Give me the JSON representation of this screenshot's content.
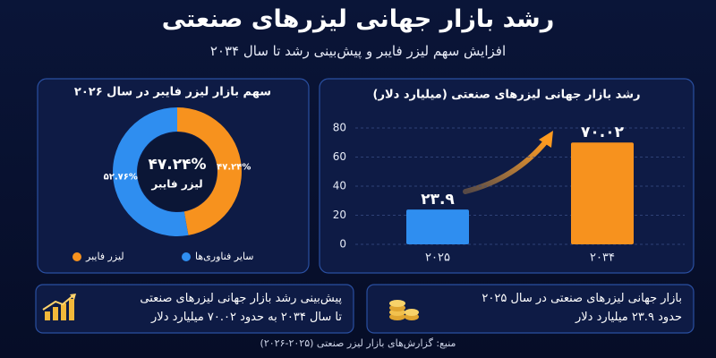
{
  "header": {
    "title": "رشد بازار جهانی لیزرهای صنعتی",
    "subtitle": "افزایش سهم لیزر فایبر و پیش‌بینی رشد تا سال ۲۰۳۴"
  },
  "chart_data": [
    {
      "type": "bar",
      "title": "رشد بازار جهانی لیزرهای صنعتی (میلیارد دلار)",
      "categories": [
        "۲۰۲۵",
        "۲۰۳۴"
      ],
      "values": [
        23.9,
        70.02
      ],
      "value_labels": [
        "۲۳.۹",
        "۷۰.۰۲"
      ],
      "colors": [
        "#2f8ef0",
        "#f7921e"
      ],
      "ylim": [
        0,
        80
      ],
      "yticks": [
        0,
        20,
        40,
        60,
        80
      ],
      "grid": true
    },
    {
      "type": "pie",
      "donut": true,
      "title": "سهم بازار لیزر فایبر در سال ۲۰۲۶",
      "categories": [
        "لیزر فایبر",
        "سایر فناوری‌ها"
      ],
      "values": [
        47.24,
        52.76
      ],
      "value_labels": [
        "۴۷.۲۴%",
        "۵۲.۷۶%"
      ],
      "colors": [
        "#f7921e",
        "#2f8ef0"
      ]
    }
  ],
  "info_boxes": [
    {
      "lines": [
        "بازار جهانی لیزرهای صنعتی در سال ۲۰۲۵",
        "حدود ۲۳.۹ میلیارد دلار"
      ]
    },
    {
      "lines": [
        "پیش‌بینی رشد بازار جهانی لیزرهای صنعتی",
        "تا سال ۲۰۳۴ به حدود ۷۰.۰۲ میلیارد دلار"
      ]
    }
  ],
  "source": "منبع: گزارش‌های بازار لیزر صنعتی (۲۰۲۵-۲۰۲۶)"
}
